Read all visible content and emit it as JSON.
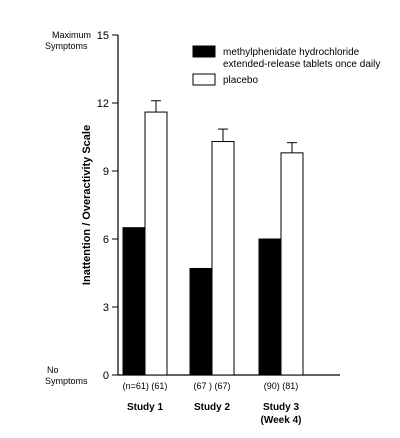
{
  "chart_data": {
    "type": "bar",
    "ylabel": "Inattention / Overactivity Scale",
    "ylim": [
      0,
      15
    ],
    "yticks": [
      0,
      3,
      6,
      9,
      12,
      15
    ],
    "y_top_annotation": [
      "Maximum",
      "Symptoms"
    ],
    "y_bottom_annotation": [
      "No",
      "Symptoms"
    ],
    "categories": [
      "Study 1",
      "Study 2",
      "Study 3"
    ],
    "category_sublabels": [
      "",
      "",
      "(Week 4)"
    ],
    "sample_sizes": [
      [
        "(n=61)",
        "(61)"
      ],
      [
        "(67 )",
        "(67)"
      ],
      [
        "(90)",
        "(81)"
      ]
    ],
    "series": [
      {
        "name": "methylphenidate hydrochloride extended-release tablets once daily",
        "legend_lines": [
          "methylphenidate hydrochloride",
          "extended-release tablets once daily"
        ],
        "color": "#000000",
        "values": [
          6.5,
          4.7,
          6.0
        ]
      },
      {
        "name": "placebo",
        "legend_lines": [
          "placebo"
        ],
        "color": "#ffffff",
        "values": [
          11.6,
          10.3,
          9.8
        ],
        "error_upper": [
          12.1,
          10.85,
          10.25
        ]
      }
    ],
    "legend_position": "top-right",
    "grid": false
  }
}
